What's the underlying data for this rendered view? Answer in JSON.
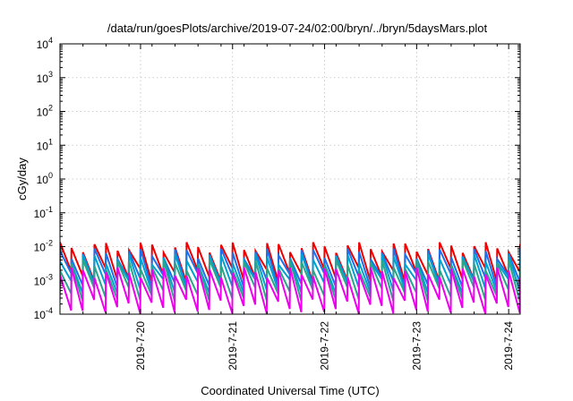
{
  "chart_data": {
    "type": "line",
    "title": "/data/run/goesPlots/archive/2019-07-24/02:00/bryn/../bryn/5daysMars.plot",
    "xlabel": "Coordinated Universal Time (UTC)",
    "ylabel": "cGy/day",
    "x_range": [
      "2019-07-19T03:00",
      "2019-07-24T03:00"
    ],
    "x_ticks": [
      "2019-7-20",
      "2019-7-21",
      "2019-7-22",
      "2019-7-23",
      "2019-7-24"
    ],
    "y_scale": "log",
    "ylim": [
      0.0001,
      10000
    ],
    "y_ticks": [
      {
        "base": "10",
        "exp": "-4"
      },
      {
        "base": "10",
        "exp": "-3"
      },
      {
        "base": "10",
        "exp": "-2"
      },
      {
        "base": "10",
        "exp": "-1"
      },
      {
        "base": "10",
        "exp": "0"
      },
      {
        "base": "10",
        "exp": "1"
      },
      {
        "base": "10",
        "exp": "2"
      },
      {
        "base": "10",
        "exp": "3"
      },
      {
        "base": "10",
        "exp": "4"
      }
    ],
    "grid": true,
    "legend": "none",
    "pattern": "sawtooth",
    "cycle_hours": 3,
    "series": [
      {
        "color": "#ee0000",
        "peak": 0.01,
        "trough": 0.0013
      },
      {
        "color": "#1f6fe8",
        "peak": 0.0065,
        "trough": 0.0009
      },
      {
        "color": "#00a0d0",
        "peak": 0.0045,
        "trough": 0.0006
      },
      {
        "color": "#2ba58a",
        "peak": 0.003,
        "trough": 0.00035
      },
      {
        "color": "#ee00ee",
        "peak": 0.0018,
        "trough": 0.00015
      }
    ]
  }
}
